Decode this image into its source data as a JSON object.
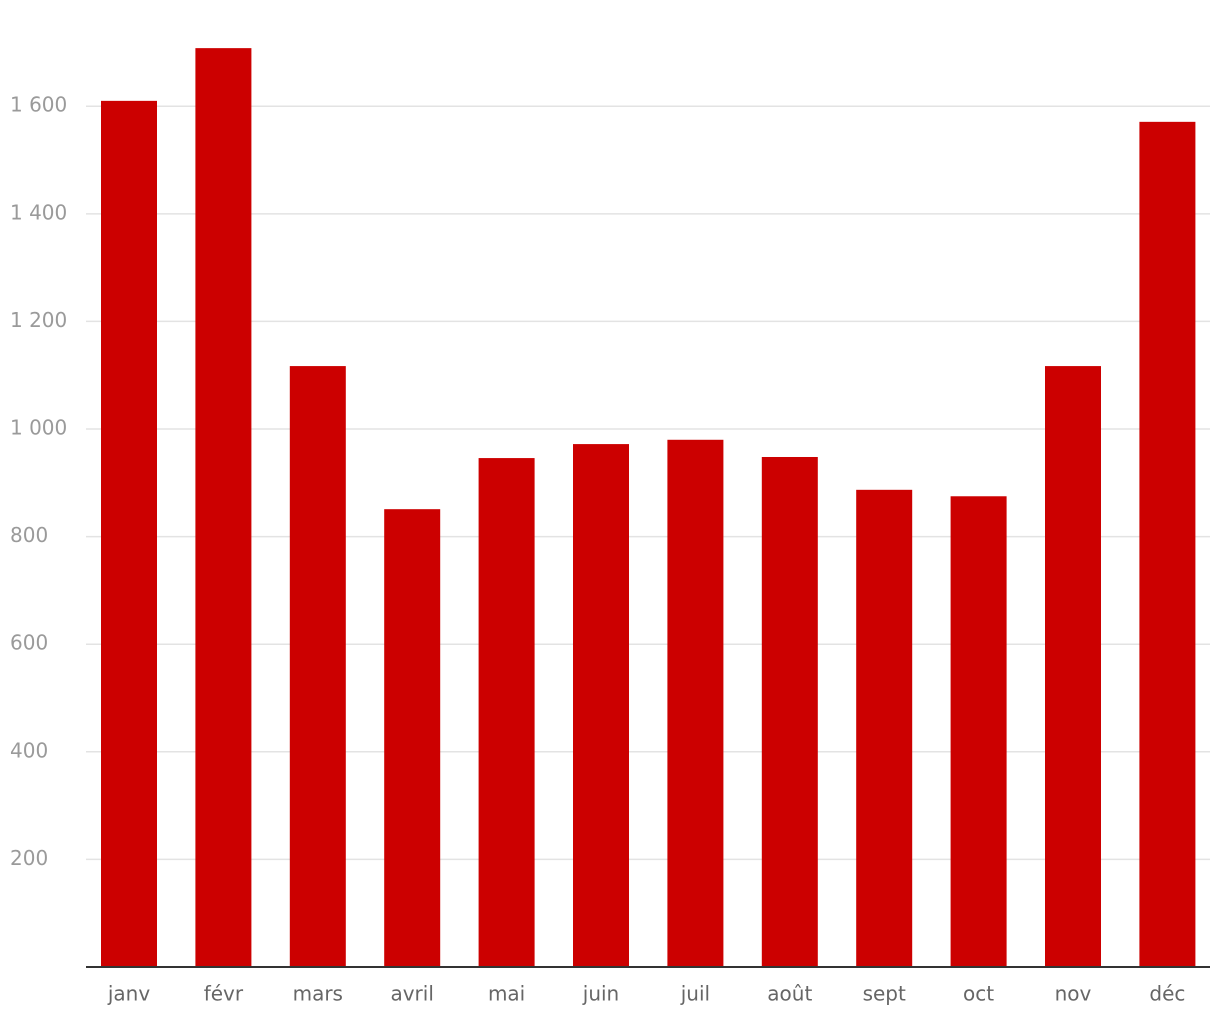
{
  "chart_data": {
    "type": "bar",
    "categories": [
      "janv",
      "févr",
      "mars",
      "avril",
      "mai",
      "juin",
      "juil",
      "août",
      "sept",
      "oct",
      "nov",
      "déc"
    ],
    "values": [
      1610,
      1708,
      1117,
      851,
      946,
      972,
      980,
      948,
      887,
      875,
      1117,
      1571
    ],
    "color": "#cc0000",
    "ylim": [
      0,
      1780
    ],
    "yticks": [
      200,
      400,
      600,
      800,
      {
        "value": 1000,
        "label": "1 000"
      },
      {
        "value": 1200,
        "label": "1 200"
      },
      {
        "value": 1400,
        "label": "1 400"
      },
      {
        "value": 1600,
        "label": "1 600"
      }
    ],
    "grid": true
  }
}
